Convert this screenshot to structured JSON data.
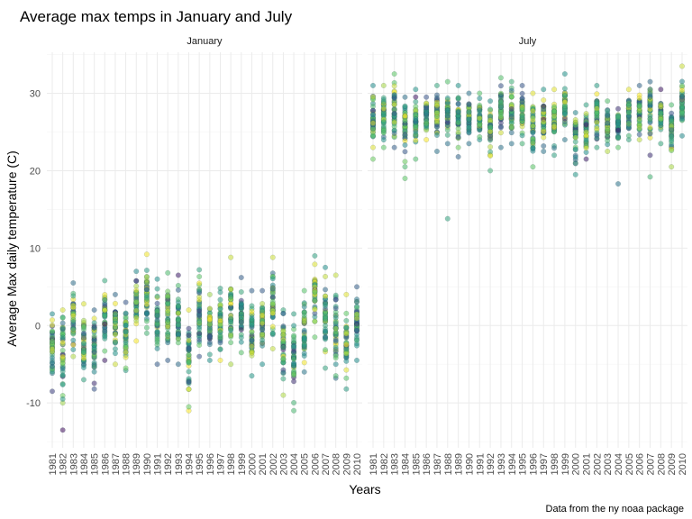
{
  "chart_data": {
    "type": "scatter",
    "title": "Average max temps in January and July",
    "xlabel": "Years",
    "ylabel": "Average Max daily temperature (C)",
    "caption": "Data from the ny noaa package",
    "facets": [
      "January",
      "July"
    ],
    "years": [
      1981,
      1982,
      1983,
      1984,
      1985,
      1986,
      1987,
      1988,
      1989,
      1990,
      1991,
      1992,
      1993,
      1994,
      1995,
      1996,
      1997,
      1998,
      1999,
      2000,
      2001,
      2002,
      2003,
      2004,
      2005,
      2006,
      2007,
      2008,
      2009,
      2010
    ],
    "ylim": [
      -15.8,
      35.3
    ],
    "yticks": [
      -10,
      0,
      10,
      20,
      30
    ],
    "grid": true,
    "legend": "none",
    "series": [
      {
        "name": "January",
        "range_min": [
          -8.5,
          -10,
          -4,
          -7,
          -8.2,
          -4.5,
          -5,
          -5.8,
          -2,
          -1,
          -5,
          -4.5,
          -5,
          -11,
          -4,
          -4.5,
          -4.5,
          -5,
          -3.5,
          -6.5,
          -5,
          -3,
          -9,
          -11,
          -6,
          -1.5,
          -5.5,
          -6.8,
          -8.2,
          -4.5
        ],
        "range_max": [
          1.5,
          2,
          5.5,
          2.8,
          2,
          5.8,
          4,
          3,
          7,
          9.2,
          6,
          6.8,
          6.5,
          2,
          7.2,
          4,
          4.8,
          8.8,
          6.2,
          4.5,
          4.5,
          8.8,
          2,
          1.5,
          4.5,
          9,
          7.5,
          6.5,
          4,
          5
        ],
        "center": [
          -3,
          -3,
          1,
          -2,
          -3,
          1,
          0,
          -1,
          2.5,
          4,
          0.5,
          0.5,
          0.5,
          -3.5,
          1.5,
          0,
          0,
          2,
          1,
          -1,
          0,
          3,
          -2.5,
          -4,
          -1,
          4,
          1,
          -0.5,
          -2.5,
          0
        ],
        "outliers": [
          [
            1982,
            -13.5
          ],
          [
            1982,
            -9.5
          ],
          [
            1994,
            -10.5
          ],
          [
            1988,
            -5.5
          ],
          [
            2008,
            -6.5
          ],
          [
            2002,
            -1
          ]
        ]
      },
      {
        "name": "July",
        "range_min": [
          23,
          23,
          23,
          20.5,
          21.5,
          24,
          22.5,
          23.5,
          23,
          23.5,
          24,
          20,
          23,
          23.5,
          23.5,
          20.5,
          22.5,
          22,
          24,
          19.5,
          21.5,
          23,
          22.5,
          23,
          24,
          24,
          22,
          23.5,
          20.5,
          24.5
        ],
        "range_max": [
          31,
          31,
          32.5,
          29.5,
          30.5,
          29.5,
          31,
          31.5,
          31,
          30,
          30,
          29,
          32,
          31.5,
          31,
          30,
          30.5,
          30.5,
          32.5,
          27.5,
          28.5,
          31,
          29,
          28,
          30.5,
          31,
          31.5,
          30.5,
          28.5,
          33.5
        ],
        "center": [
          27,
          27,
          28.5,
          26,
          26.5,
          27,
          27,
          27.5,
          27,
          27,
          27,
          25.5,
          28,
          27.5,
          27.5,
          26,
          26.5,
          26.5,
          28.5,
          25,
          25.5,
          27.5,
          26,
          26,
          27.5,
          28,
          28,
          27,
          25.5,
          29
        ],
        "outliers": [
          [
            1981,
            21.5
          ],
          [
            1984,
            19
          ],
          [
            1988,
            13.8
          ],
          [
            2004,
            18.3
          ],
          [
            2007,
            19.2
          ],
          [
            1989,
            21.8
          ]
        ]
      }
    ],
    "color_scale": [
      "#440154",
      "#3b528b",
      "#21918c",
      "#5ec962",
      "#fde725"
    ]
  }
}
